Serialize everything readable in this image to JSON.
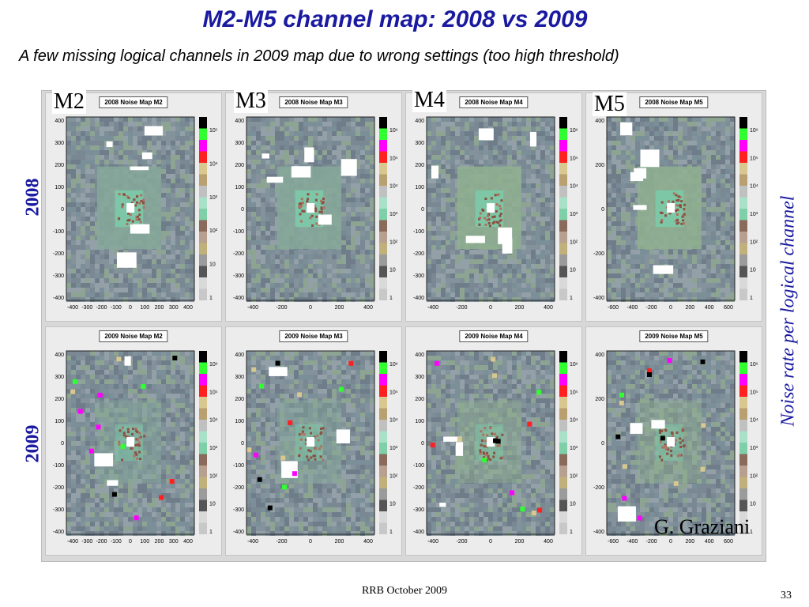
{
  "slide": {
    "title": "M2-M5 channel map: 2008 vs 2009",
    "subtitle": "A few missing logical channels in 2009 map due to wrong settings (too high threshold)",
    "row_labels": [
      "2008",
      "2009"
    ],
    "station_labels": [
      "M2",
      "M3",
      "M4",
      "M5"
    ],
    "side_label": "Noise rate per logical channel",
    "author": "G. Graziani",
    "footer": "RRB October 2009",
    "page_number": "33"
  },
  "colors": {
    "title": "#1a1aa0",
    "background_gray": "#7c8a96",
    "region_green": "#7bbfa3",
    "hot_brown": "#8a5040",
    "map_green": "#8aa68d"
  },
  "panels": [
    {
      "title": "2008 Noise Map M2",
      "x_ticks": [
        "-400",
        "-300",
        "-200",
        "-100",
        "0",
        "100",
        "200",
        "300",
        "400"
      ],
      "y_ticks": [
        "400",
        "300",
        "200",
        "100",
        "0",
        "-100",
        "-200",
        "-300",
        "-400"
      ],
      "z_ticks": [
        "1",
        "10",
        "10²",
        "10³",
        "10⁴",
        "10⁵"
      ]
    },
    {
      "title": "2008 Noise Map M3",
      "x_ticks": [
        "-400",
        "-200",
        "0",
        "200",
        "400"
      ],
      "y_ticks": [
        "400",
        "300",
        "200",
        "100",
        "0",
        "-100",
        "-200",
        "-300",
        "-400"
      ],
      "z_ticks": [
        "1",
        "10",
        "10²",
        "10³",
        "10⁴",
        "10⁵",
        "10⁶"
      ]
    },
    {
      "title": "2008 Noise Map M4",
      "x_ticks": [
        "-400",
        "-200",
        "0",
        "200",
        "400"
      ],
      "y_ticks": [
        "400",
        "300",
        "200",
        "100",
        "0",
        "-100",
        "-200",
        "-300",
        "-400"
      ],
      "z_ticks": [
        "1",
        "10",
        "10²",
        "10³",
        "10⁴",
        "10⁵",
        "10⁶"
      ]
    },
    {
      "title": "2008 Noise Map M5",
      "x_ticks": [
        "-600",
        "-400",
        "-200",
        "0",
        "200",
        "400",
        "600"
      ],
      "y_ticks": [
        "400",
        "200",
        "0",
        "-200",
        "-400"
      ],
      "z_ticks": [
        "1",
        "10",
        "10²",
        "10³",
        "10⁴",
        "10⁵",
        "10⁶"
      ]
    },
    {
      "title": "2009 Noise Map M2",
      "x_ticks": [
        "-400",
        "-300",
        "-200",
        "-100",
        "0",
        "100",
        "200",
        "300",
        "400"
      ],
      "y_ticks": [
        "400",
        "300",
        "200",
        "100",
        "0",
        "-100",
        "-200",
        "-300",
        "-400"
      ],
      "z_ticks": [
        "1",
        "10",
        "10²",
        "10³",
        "10⁴",
        "10⁵",
        "10⁶"
      ]
    },
    {
      "title": "2009 Noise Map M3",
      "x_ticks": [
        "-400",
        "-200",
        "0",
        "200",
        "400"
      ],
      "y_ticks": [
        "400",
        "300",
        "200",
        "100",
        "0",
        "-100",
        "-200",
        "-300",
        "-400"
      ],
      "z_ticks": [
        "1",
        "10",
        "10²",
        "10³",
        "10⁴",
        "10⁵",
        "10⁶"
      ]
    },
    {
      "title": "2009 Noise Map M4",
      "x_ticks": [
        "-400",
        "-200",
        "0",
        "200",
        "400"
      ],
      "y_ticks": [
        "400",
        "300",
        "200",
        "100",
        "0",
        "-100",
        "-200",
        "-300",
        "-400"
      ],
      "z_ticks": [
        "1",
        "10",
        "10²",
        "10³",
        "10⁴",
        "10⁵",
        "10⁶"
      ]
    },
    {
      "title": "2009 Noise Map M5",
      "x_ticks": [
        "-600",
        "-400",
        "-200",
        "0",
        "200",
        "400",
        "600"
      ],
      "y_ticks": [
        "400",
        "200",
        "0",
        "-200",
        "-400"
      ],
      "z_ticks": [
        "1",
        "10",
        "10²",
        "10³",
        "10⁴",
        "10⁵",
        "10⁶"
      ]
    }
  ]
}
